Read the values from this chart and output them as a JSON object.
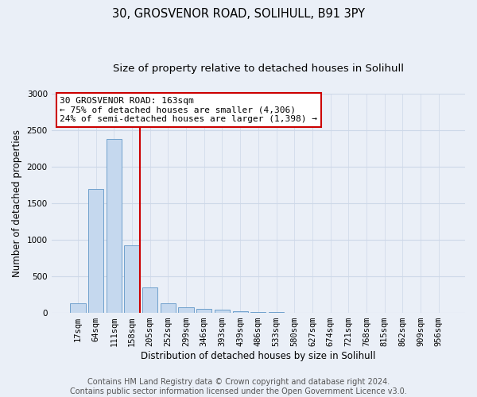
{
  "title": "30, GROSVENOR ROAD, SOLIHULL, B91 3PY",
  "subtitle": "Size of property relative to detached houses in Solihull",
  "xlabel": "Distribution of detached houses by size in Solihull",
  "ylabel": "Number of detached properties",
  "bar_labels": [
    "17sqm",
    "64sqm",
    "111sqm",
    "158sqm",
    "205sqm",
    "252sqm",
    "299sqm",
    "346sqm",
    "393sqm",
    "439sqm",
    "486sqm",
    "533sqm",
    "580sqm",
    "627sqm",
    "674sqm",
    "721sqm",
    "768sqm",
    "815sqm",
    "862sqm",
    "909sqm",
    "956sqm"
  ],
  "bar_values": [
    130,
    1700,
    2380,
    920,
    350,
    130,
    80,
    55,
    40,
    25,
    15,
    10,
    5,
    0,
    0,
    0,
    0,
    0,
    0,
    0,
    0
  ],
  "bar_color": "#c5d8ee",
  "bar_edgecolor": "#6fa0cc",
  "vline_bar_index": 3,
  "vline_color": "#cc0000",
  "annotation_text": "30 GROSVENOR ROAD: 163sqm\n← 75% of detached houses are smaller (4,306)\n24% of semi-detached houses are larger (1,398) →",
  "annotation_box_facecolor": "#ffffff",
  "annotation_box_edgecolor": "#cc0000",
  "ylim": [
    0,
    3000
  ],
  "yticks": [
    0,
    500,
    1000,
    1500,
    2000,
    2500,
    3000
  ],
  "grid_color": "#cdd8e8",
  "background_color": "#eaeff7",
  "footer_line1": "Contains HM Land Registry data © Crown copyright and database right 2024.",
  "footer_line2": "Contains public sector information licensed under the Open Government Licence v3.0.",
  "title_fontsize": 10.5,
  "subtitle_fontsize": 9.5,
  "axis_label_fontsize": 8.5,
  "tick_fontsize": 7.5,
  "annotation_fontsize": 8,
  "footer_fontsize": 7
}
